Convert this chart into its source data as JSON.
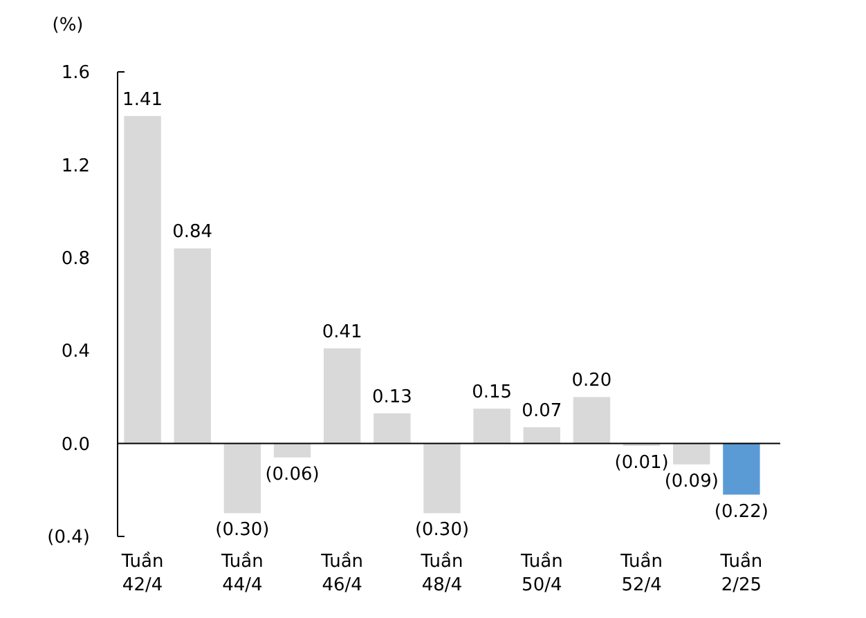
{
  "chart_data": {
    "type": "bar",
    "ylabel": "(%)",
    "categories": [
      "Tuần 42/4",
      null,
      "Tuần 44/4",
      null,
      "Tuần 46/4",
      null,
      "Tuần 48/4",
      null,
      "Tuần 50/4",
      null,
      "Tuần 52/4",
      null,
      "Tuần 2/25"
    ],
    "values": [
      1.41,
      0.84,
      -0.3,
      -0.06,
      0.41,
      0.13,
      -0.3,
      0.15,
      0.07,
      0.2,
      -0.01,
      -0.09,
      -0.22
    ],
    "colors": [
      "#d9d9d9",
      "#d9d9d9",
      "#d9d9d9",
      "#d9d9d9",
      "#d9d9d9",
      "#d9d9d9",
      "#d9d9d9",
      "#d9d9d9",
      "#d9d9d9",
      "#d9d9d9",
      "#d9d9d9",
      "#d9d9d9",
      "#5b9bd5"
    ],
    "value_labels": [
      "1.41",
      "0.84",
      "(0.30)",
      "(0.06)",
      "0.41",
      "0.13",
      "(0.30)",
      "0.15",
      "0.07",
      "0.20",
      "(0.01)",
      "(0.09)",
      "(0.22)"
    ],
    "ylim": [
      -0.4,
      1.6
    ],
    "yticks": [
      {
        "value": -0.4,
        "label": "(0.4)"
      },
      {
        "value": 0,
        "label": "0.0"
      },
      {
        "value": 0.4,
        "label": "0.4"
      },
      {
        "value": 0.8,
        "label": "0.8"
      },
      {
        "value": 1.2,
        "label": "1.2"
      },
      {
        "value": 1.6,
        "label": "1.6"
      }
    ]
  }
}
